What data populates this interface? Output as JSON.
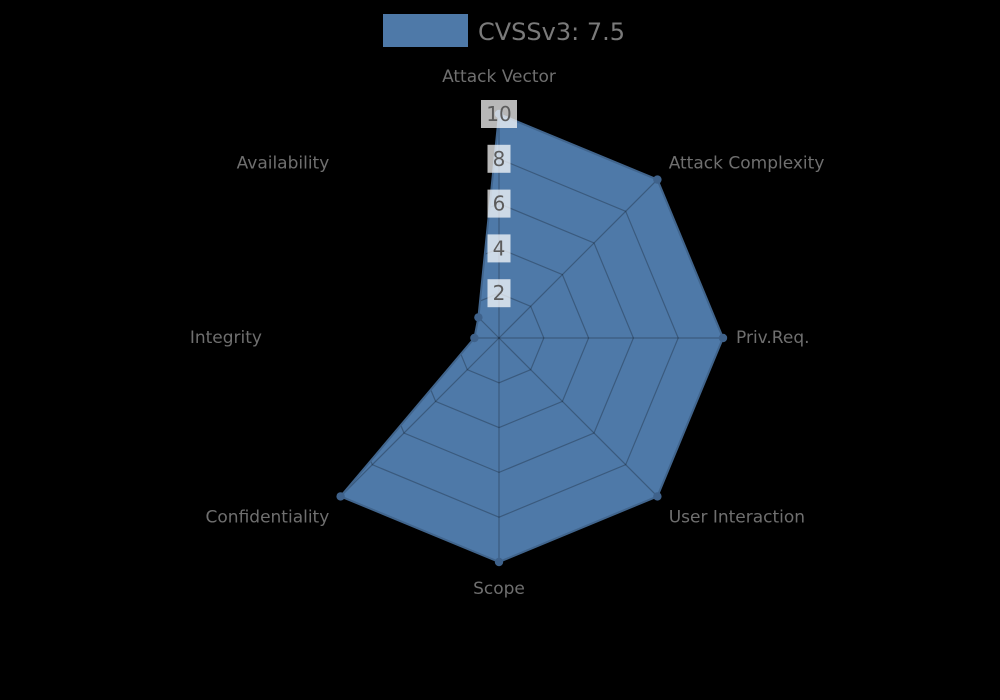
{
  "chart_data": {
    "type": "radar",
    "legend": "CVSSv3: 7.5",
    "legend_position": "top-center",
    "categories": [
      "Attack Vector",
      "Attack Complexity",
      "Priv.Req.",
      "User Interaction",
      "Scope",
      "Confidentiality",
      "Integrity",
      "Availability"
    ],
    "series": [
      {
        "name": "CVSSv3: 7.5",
        "values": [
          10,
          10,
          10,
          10,
          10,
          10,
          1.1,
          1.3
        ]
      }
    ],
    "r_ticks": [
      2,
      4,
      6,
      8,
      10
    ],
    "r_max": 10,
    "grid": true
  },
  "colors": {
    "background": "#000000",
    "series_fill": "#4e79a8",
    "series_edge": "#41658d",
    "marker": "#3f628b",
    "grid_line": "rgba(0,0,0,0.25)",
    "axis_label_text": "#6f6f6f",
    "tick_text": "#5c5c5c",
    "tick_box_fill": "rgba(255,255,255,0.72)",
    "legend_text": "#7a7a7a"
  }
}
